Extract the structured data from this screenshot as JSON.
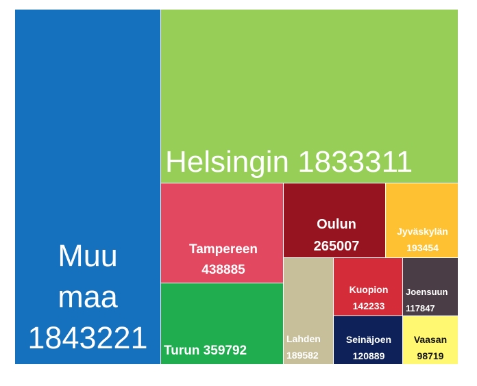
{
  "chart_data": {
    "type": "treemap",
    "title": "",
    "items": [
      {
        "id": "muu",
        "name": "Muu maa",
        "value": 1843221,
        "label_lines": [
          "Muu",
          "maa",
          "1843221"
        ],
        "color": "#1570BE",
        "text_color": "#ffffff"
      },
      {
        "id": "helsinki",
        "name": "Helsingin",
        "value": 1833311,
        "label_lines": [
          "Helsingin  1833311"
        ],
        "color": "#97CE58",
        "text_color": "#ffffff"
      },
      {
        "id": "tampere",
        "name": "Tampereen",
        "value": 438885,
        "label_lines": [
          "Tampereen",
          "438885"
        ],
        "color": "#E24860",
        "text_color": "#ffffff"
      },
      {
        "id": "turku",
        "name": "Turun",
        "value": 359792,
        "label_lines": [
          "Turun  359792"
        ],
        "color": "#1FAD50",
        "text_color": "#ffffff"
      },
      {
        "id": "oulu",
        "name": "Oulun",
        "value": 265007,
        "label_lines": [
          "Oulun",
          "265007"
        ],
        "color": "#96141F",
        "text_color": "#ffffff"
      },
      {
        "id": "jyvaskyla",
        "name": "Jyväskylän",
        "value": 193454,
        "label_lines": [
          "Jyväskylän",
          "193454"
        ],
        "color": "#FEC132",
        "text_color": "#ffffff"
      },
      {
        "id": "lahti",
        "name": "Lahden",
        "value": 189582,
        "label_lines": [
          "Lahden",
          "189582"
        ],
        "color": "#C7BE9A",
        "text_color": "#ffffff"
      },
      {
        "id": "kuopio",
        "name": "Kuopion",
        "value": 142233,
        "label_lines": [
          "Kuopion",
          "142233"
        ],
        "color": "#D42D39",
        "text_color": "#ffffff"
      },
      {
        "id": "joensuu",
        "name": "Joensuu",
        "value": 117847,
        "label_lines": [
          "Joensuun",
          "117847"
        ],
        "color": "#4B3D45",
        "text_color": "#ffffff"
      },
      {
        "id": "seinajoki",
        "name": "Seinäjoen",
        "value": 120889,
        "label_lines": [
          "Seinäjoen",
          "120889"
        ],
        "color": "#0E2259",
        "text_color": "#ffffff"
      },
      {
        "id": "vaasa",
        "name": "Vaasan",
        "value": 98719,
        "label_lines": [
          "Vaasan",
          "98719"
        ],
        "color": "#FFF870",
        "text_color": "#111111"
      }
    ]
  }
}
